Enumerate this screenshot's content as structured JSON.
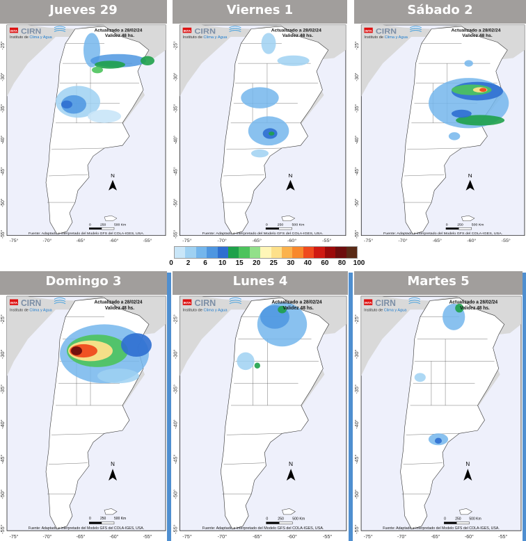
{
  "colors": {
    "header_bg": "#a19e9c",
    "frame_blue": "#4f8fd0",
    "sea": "#eef0fb",
    "land": "#ffffff",
    "neighbor": "#d9d9d9"
  },
  "panels": [
    {
      "title": "Jueves 29"
    },
    {
      "title": "Viernes 1"
    },
    {
      "title": "Sábado 2"
    },
    {
      "title": "Domingo 3"
    },
    {
      "title": "Lunes 4"
    },
    {
      "title": "Martes 5"
    }
  ],
  "map_text": {
    "logo_inta": "INTA",
    "logo_cirn": "CIRN",
    "institute_prefix": "Instituto de",
    "institute_highlight": "Clima y Agua",
    "updated": "Actualizado a 28/02/24",
    "validity": "Validez 48 hs.",
    "source": "Fuente: Adaptado e interpretado del Modelo GFS del COLA-IGES, USA.",
    "scale_0": "0",
    "scale_250": "250",
    "scale_500": "500 Km",
    "north": "N",
    "lat_labels": [
      "-25°",
      "-30°",
      "-35°",
      "-40°",
      "-45°",
      "-50°",
      "-55°"
    ],
    "lon_labels": [
      "-75°",
      "-70°",
      "-65°",
      "-60°",
      "-55°"
    ]
  },
  "legend": {
    "unit": "",
    "labels": [
      "0",
      "2",
      "6",
      "10",
      "15",
      "20",
      "25",
      "30",
      "40",
      "60",
      "80",
      "100"
    ],
    "colors": [
      "#c9e6f8",
      "#9fd1f2",
      "#74b6ec",
      "#4e96e0",
      "#2f6fd0",
      "#1fa14a",
      "#4cc35c",
      "#92e08a",
      "#fff6b8",
      "#fde08a",
      "#fbb24c",
      "#f8882c",
      "#ef4a1e",
      "#cf1a12",
      "#9b0a0a",
      "#6d0d0d",
      "#5a2a16"
    ]
  }
}
